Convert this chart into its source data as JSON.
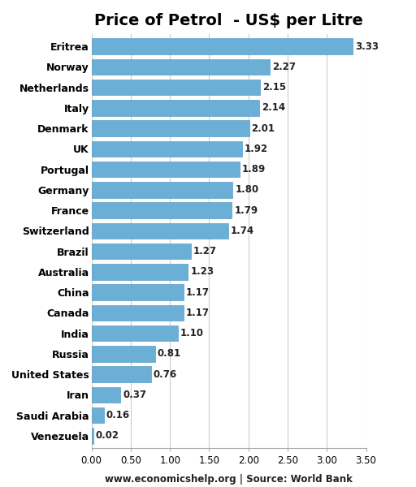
{
  "title": "Price of Petrol  - US$ per Litre",
  "countries": [
    "Venezuela",
    "Saudi Arabia",
    "Iran",
    "United States",
    "Russia",
    "India",
    "Canada",
    "China",
    "Australia",
    "Brazil",
    "Switzerland",
    "France",
    "Germany",
    "Portugal",
    "UK",
    "Denmark",
    "Italy",
    "Netherlands",
    "Norway",
    "Eritrea"
  ],
  "values": [
    0.02,
    0.16,
    0.37,
    0.76,
    0.81,
    1.1,
    1.17,
    1.17,
    1.23,
    1.27,
    1.74,
    1.79,
    1.8,
    1.89,
    1.92,
    2.01,
    2.14,
    2.15,
    2.27,
    3.33
  ],
  "bar_color": "#6baed6",
  "bar_edge_color": "#5a9ec8",
  "xlim": [
    0,
    3.5
  ],
  "xticks": [
    0.0,
    0.5,
    1.0,
    1.5,
    2.0,
    2.5,
    3.0,
    3.5
  ],
  "xtick_labels": [
    "0.00",
    "0.50",
    "1.00",
    "1.50",
    "2.00",
    "2.50",
    "3.00",
    "3.50"
  ],
  "grid_color": "#cccccc",
  "background_color": "#ffffff",
  "footer": "www.economicshelp.org | Source: World Bank",
  "title_fontsize": 14,
  "label_fontsize": 9,
  "tick_fontsize": 8.5,
  "footer_fontsize": 8.5,
  "value_fontsize": 8.5
}
